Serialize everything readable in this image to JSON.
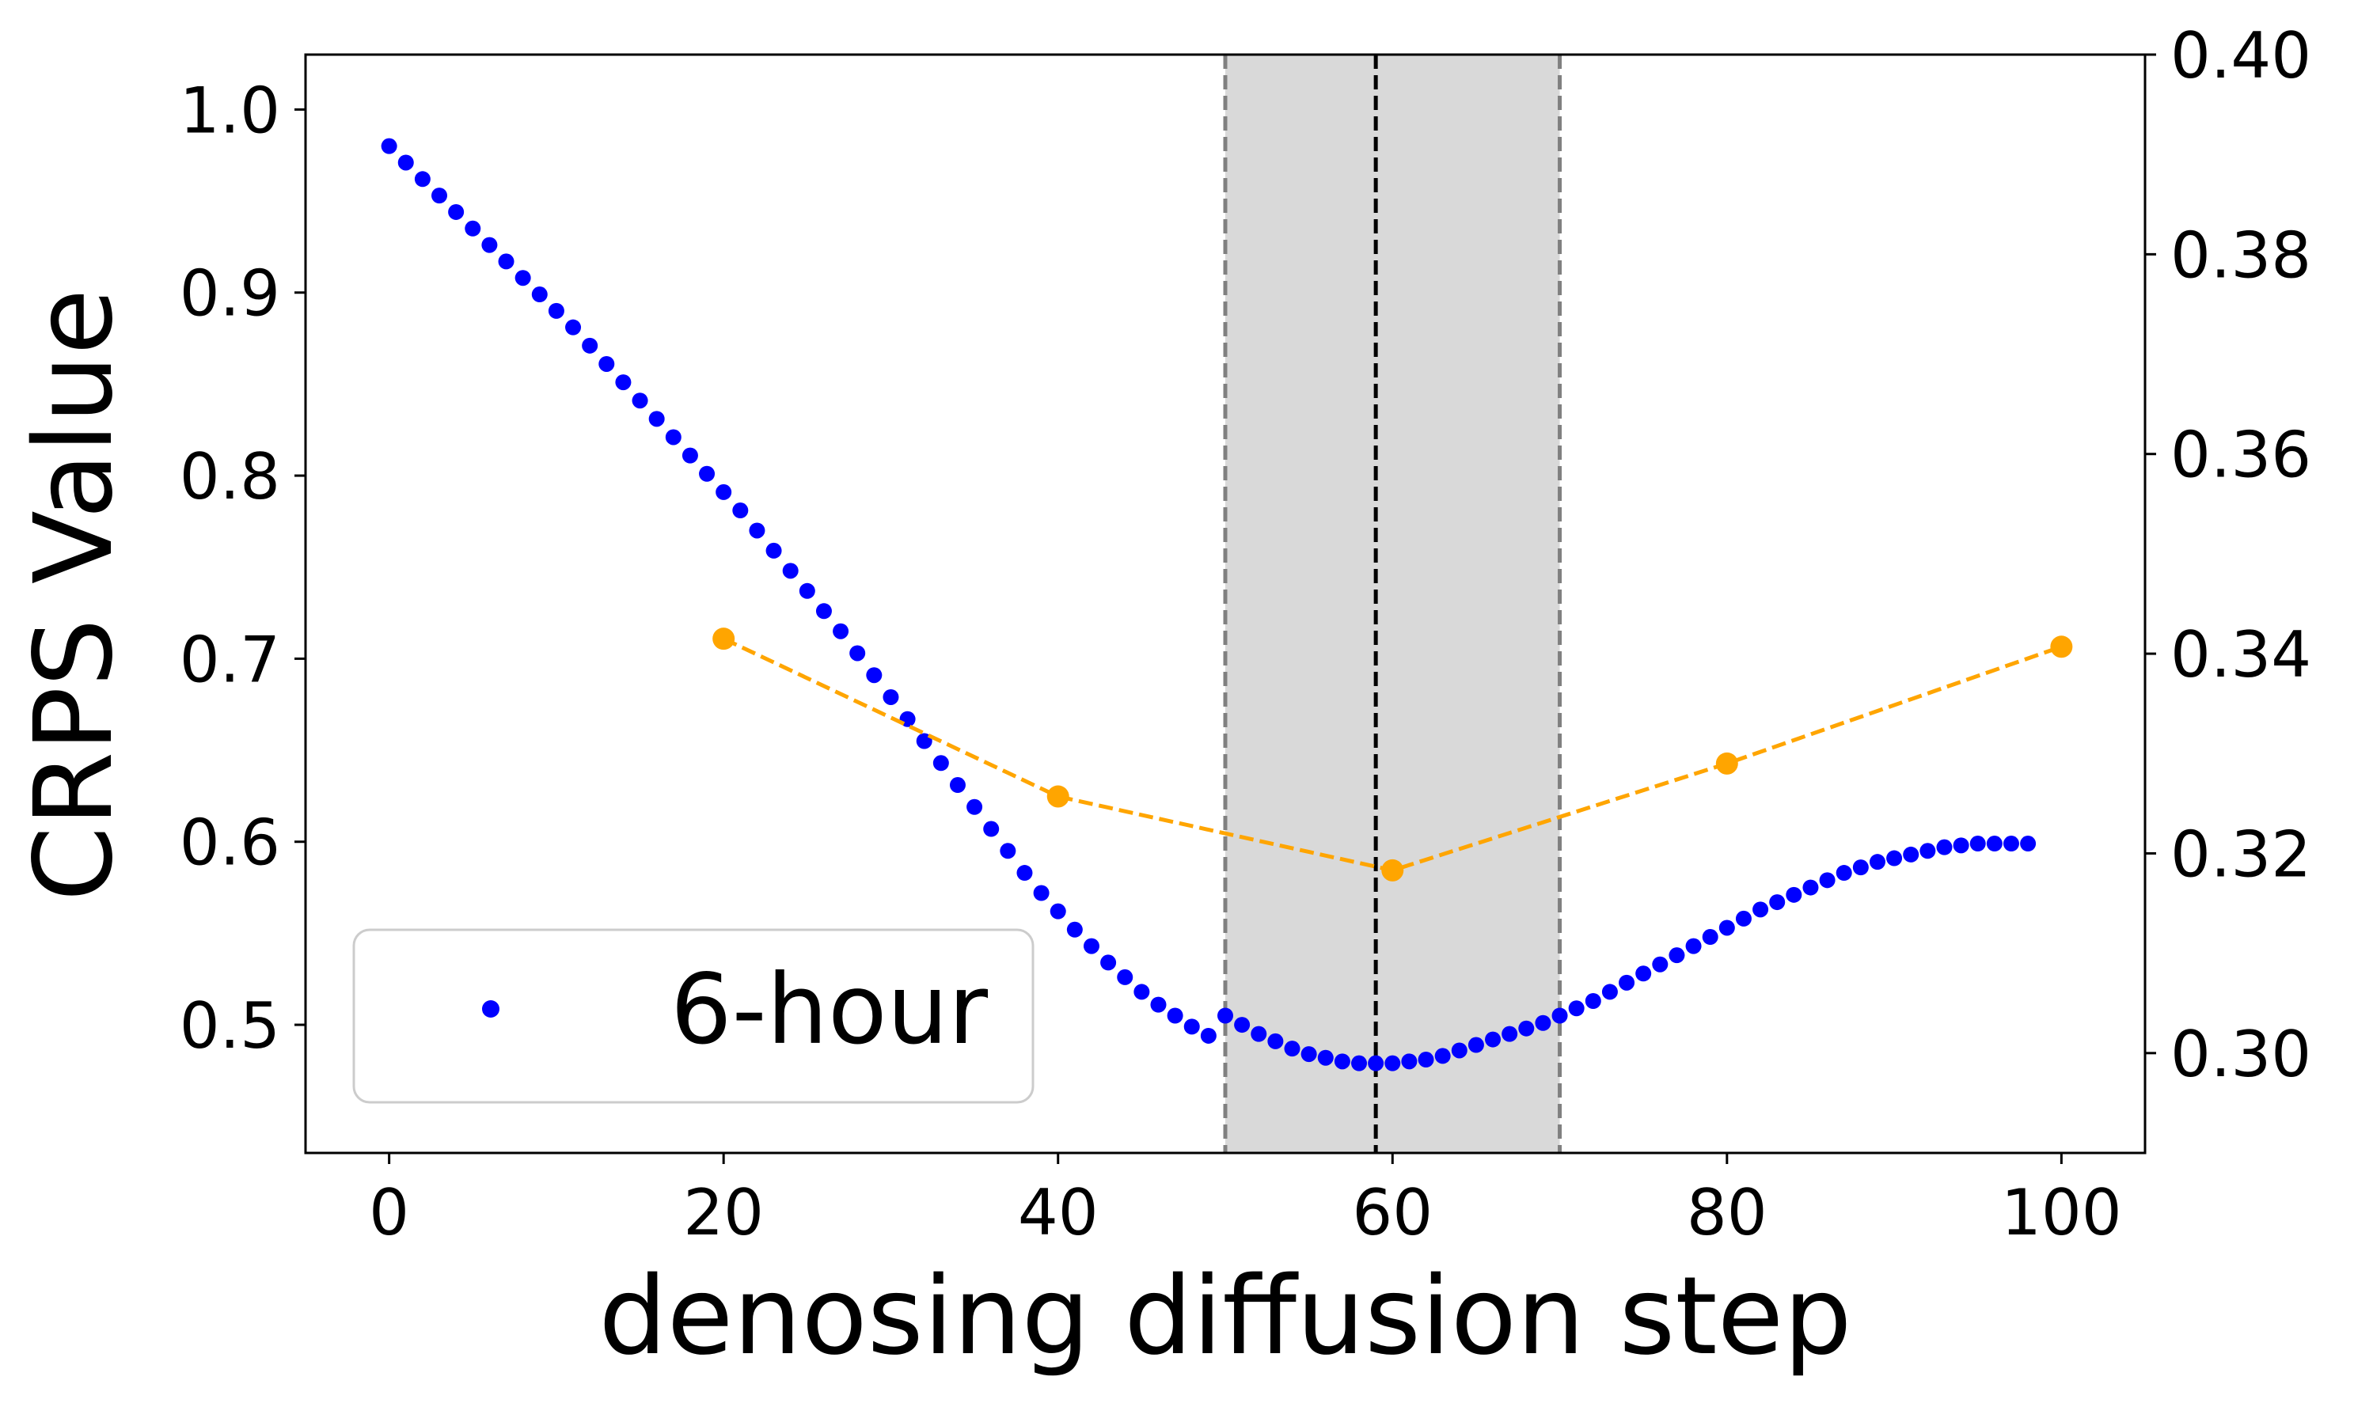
{
  "chart_data": {
    "type": "scatter",
    "title": "",
    "xlabel": "denosing diffusion step",
    "ylabel": "CRPS Value",
    "xlim": [
      -5,
      105
    ],
    "ylim": [
      0.43,
      1.03
    ],
    "y2lim": [
      0.29,
      0.4
    ],
    "x_ticks": [
      0,
      20,
      40,
      60,
      80,
      100
    ],
    "y_ticks": [
      0.5,
      0.6,
      0.7,
      0.8,
      0.9,
      1.0
    ],
    "y2_ticks": [
      0.3,
      0.32,
      0.34,
      0.36,
      0.38,
      0.4
    ],
    "x_tick_labels": [
      "0",
      "20",
      "40",
      "60",
      "80",
      "100"
    ],
    "y_tick_labels": [
      "0.5",
      "0.6",
      "0.7",
      "0.8",
      "0.9",
      "1.0"
    ],
    "y2_tick_labels": [
      "0.30",
      "0.32",
      "0.34",
      "0.36",
      "0.38",
      "0.40"
    ],
    "shaded_region": {
      "x_start": 50,
      "x_end": 70,
      "color": "#d9d9d9",
      "edge_color": "#808080"
    },
    "vertical_line": {
      "x": 59,
      "color": "#000000"
    },
    "series": [
      {
        "name": "6-hour",
        "axis": "left",
        "style": "dots",
        "color": "#0000ff",
        "x": [
          0,
          1,
          2,
          3,
          4,
          5,
          6,
          7,
          8,
          9,
          10,
          11,
          12,
          13,
          14,
          15,
          16,
          17,
          18,
          19,
          20,
          21,
          22,
          23,
          24,
          25,
          26,
          27,
          28,
          29,
          30,
          31,
          32,
          33,
          34,
          35,
          36,
          37,
          38,
          39,
          40,
          41,
          42,
          43,
          44,
          45,
          46,
          47,
          48,
          49,
          50,
          51,
          52,
          53,
          54,
          55,
          56,
          57,
          58,
          59,
          60,
          61,
          62,
          63,
          64,
          65,
          66,
          67,
          68,
          69,
          70,
          71,
          72,
          73,
          74,
          75,
          76,
          77,
          78,
          79,
          80,
          81,
          82,
          83,
          84,
          85,
          86,
          87,
          88,
          89,
          90,
          91,
          92,
          93,
          94,
          95,
          96,
          97,
          98
        ],
        "values": [
          0.98,
          0.971,
          0.962,
          0.953,
          0.944,
          0.935,
          0.926,
          0.917,
          0.908,
          0.899,
          0.89,
          0.881,
          0.871,
          0.861,
          0.851,
          0.841,
          0.831,
          0.821,
          0.811,
          0.801,
          0.791,
          0.781,
          0.77,
          0.759,
          0.748,
          0.737,
          0.726,
          0.715,
          0.703,
          0.691,
          0.679,
          0.667,
          0.655,
          0.643,
          0.631,
          0.619,
          0.607,
          0.595,
          0.583,
          0.572,
          0.562,
          0.552,
          0.543,
          0.534,
          0.526,
          0.518,
          0.511,
          0.505,
          0.499,
          0.494,
          0.505,
          0.5,
          0.495,
          0.491,
          0.487,
          0.484,
          0.482,
          0.48,
          0.479,
          0.479,
          0.479,
          0.48,
          0.481,
          0.483,
          0.486,
          0.489,
          0.492,
          0.495,
          0.498,
          0.501,
          0.505,
          0.509,
          0.513,
          0.518,
          0.523,
          0.528,
          0.533,
          0.538,
          0.543,
          0.548,
          0.553,
          0.558,
          0.563,
          0.567,
          0.571,
          0.575,
          0.579,
          0.583,
          0.586,
          0.589,
          0.591,
          0.593,
          0.595,
          0.597,
          0.598,
          0.599,
          0.599,
          0.599,
          0.599
        ]
      },
      {
        "name": "",
        "axis": "right",
        "style": "dashed-markers",
        "color": "#ffa500",
        "x": [
          20,
          40,
          60,
          80,
          100
        ],
        "values": [
          0.3415,
          0.3257,
          0.3183,
          0.329,
          0.3407
        ]
      }
    ],
    "legend": {
      "position": "lower-left",
      "entries": [
        "6-hour"
      ]
    }
  }
}
